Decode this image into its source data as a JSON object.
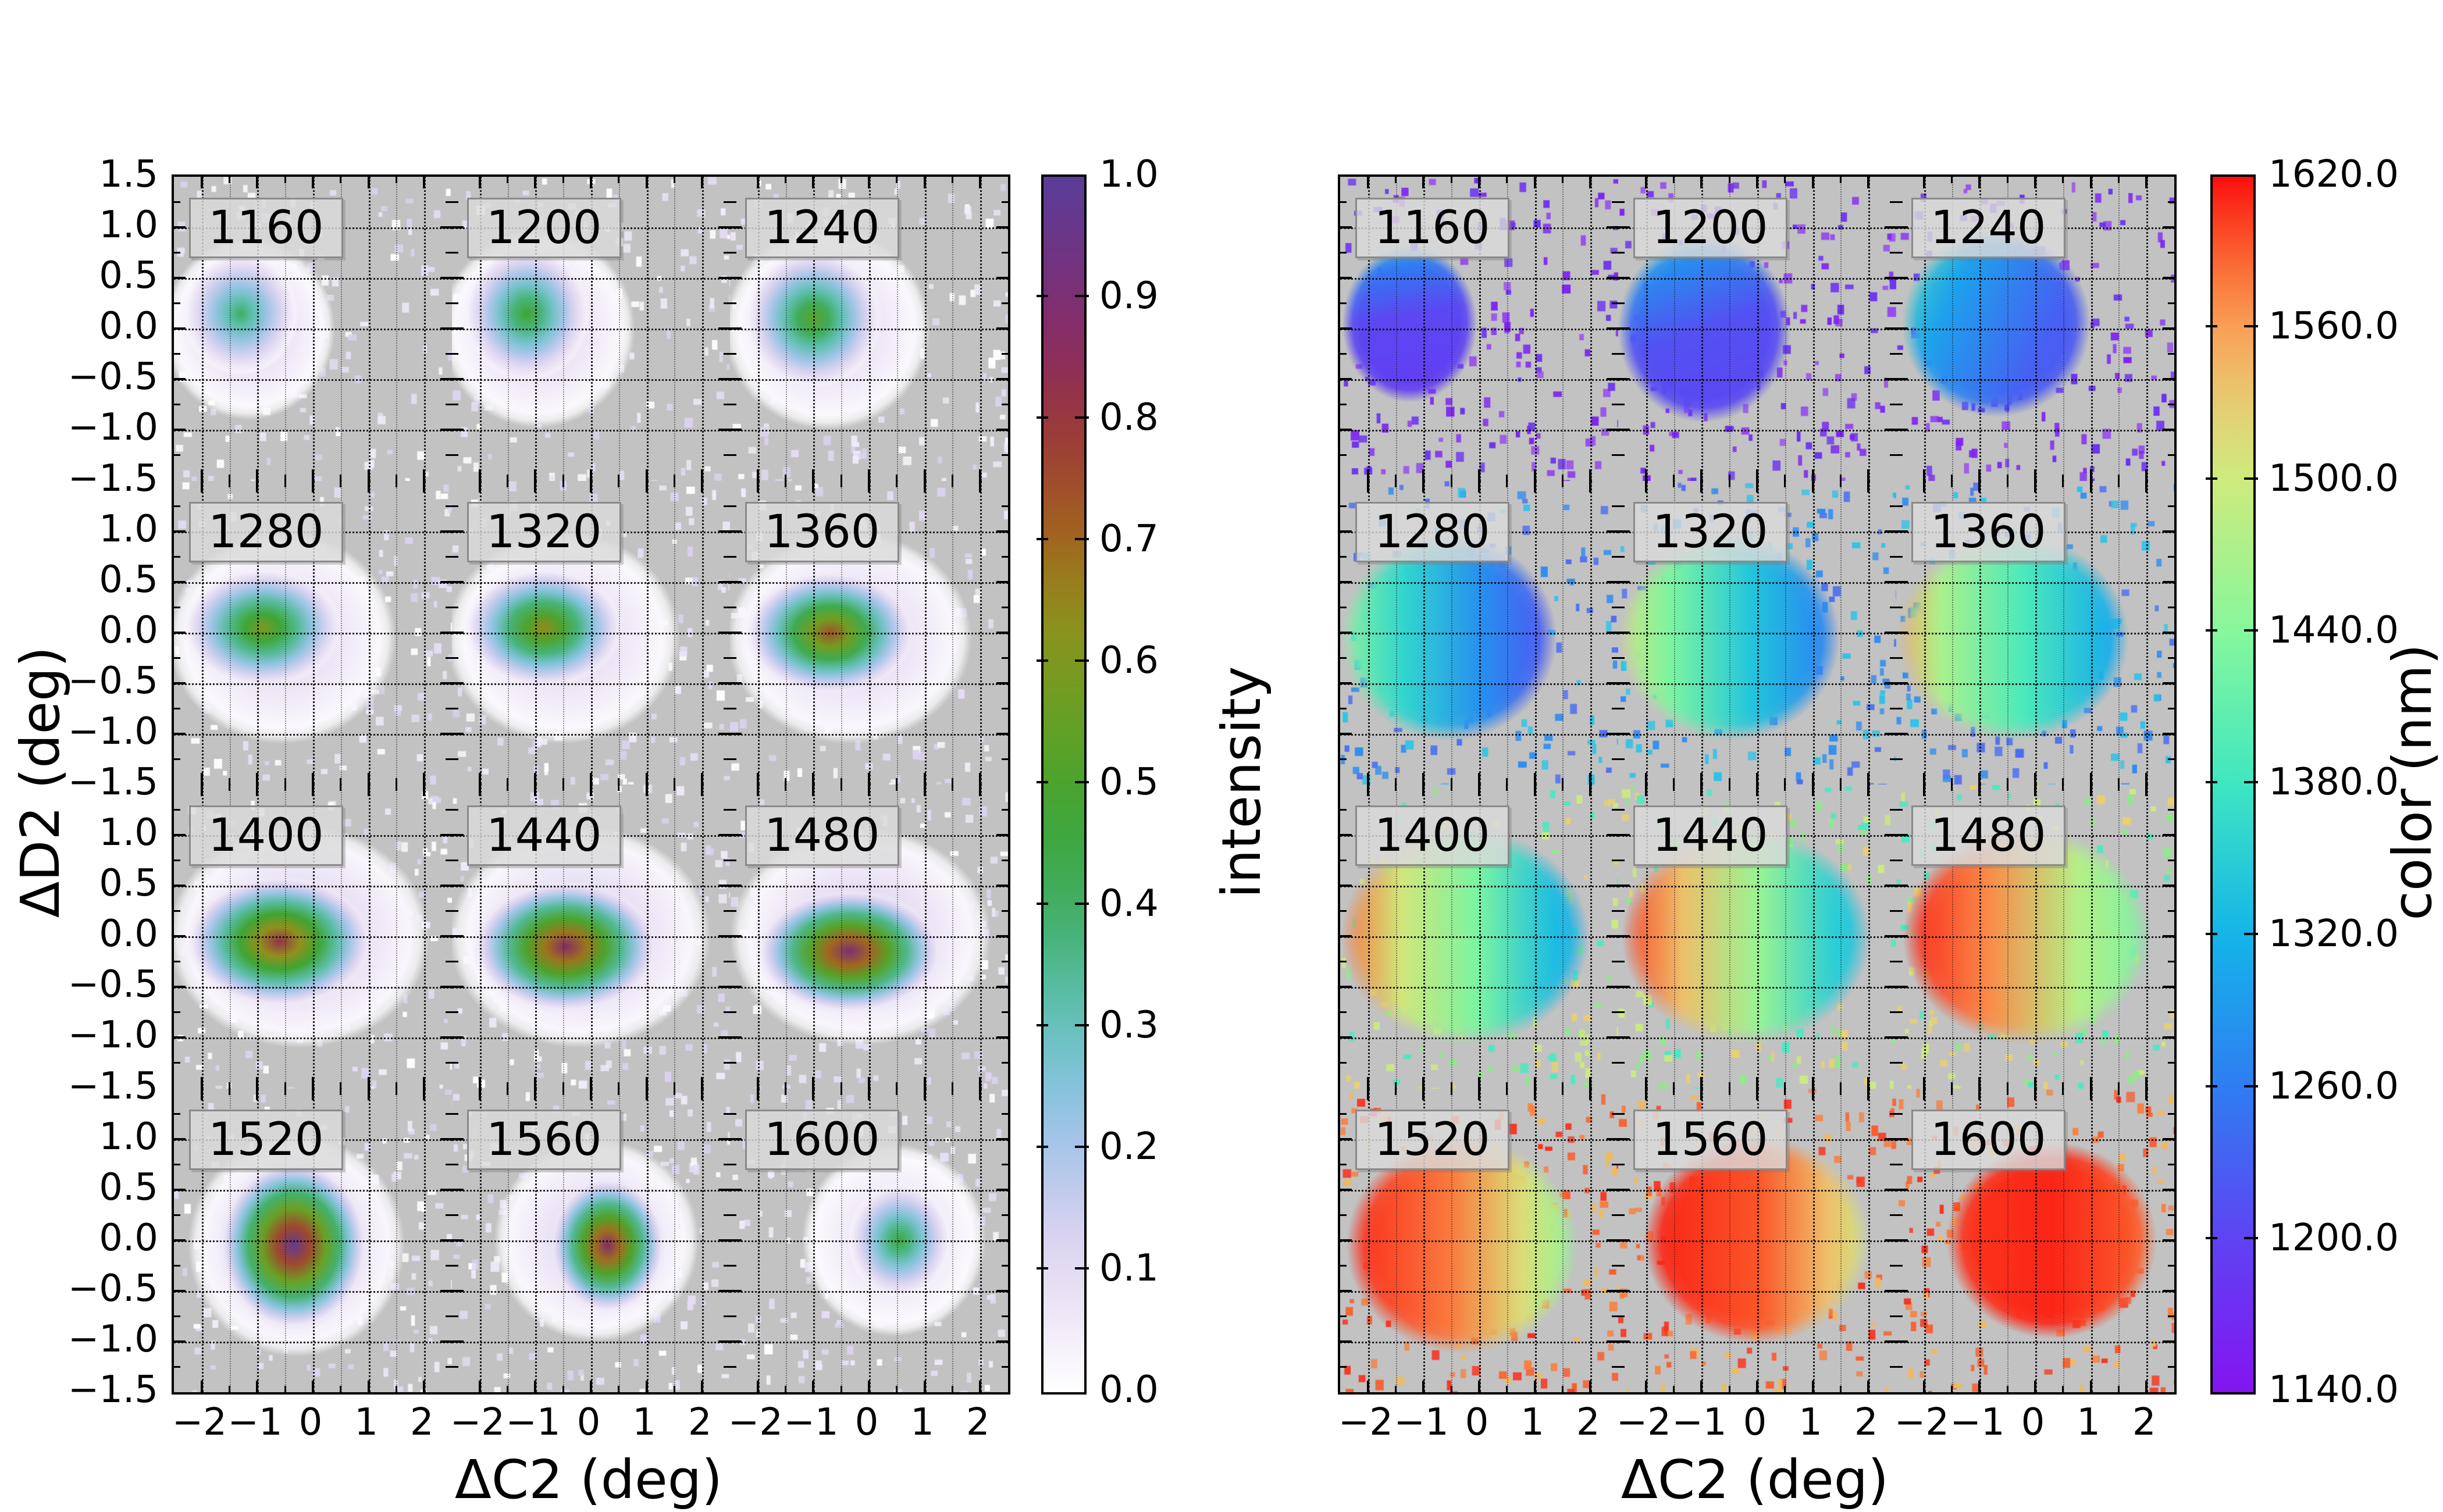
{
  "chart_data": {
    "type": "heatmap",
    "description": "Two 3x4 grids of 2D histogram heatmaps vs (ΔC2, ΔD2); left grid shows normalized intensity, right grid shows mean color in nm; each subplot is one wavelength from 1160 to 1600 nm",
    "x_range": [
      -2.5,
      2.5
    ],
    "y_range": [
      -1.5,
      1.5
    ],
    "x_tick_values": [
      -2,
      -1,
      0,
      1,
      2
    ],
    "y_tick_values": [
      1.5,
      1.0,
      0.5,
      0.0,
      -0.5,
      -1.0,
      -1.5
    ],
    "x_tick_labels": [
      "−2",
      "−1",
      "0",
      "1",
      "2"
    ],
    "y_tick_labels": [
      "1.5",
      "1.0",
      "0.5",
      "0.0",
      "−0.5",
      "−1.0",
      "−1.5"
    ],
    "styles": {
      "plot_bg": "#c2c2c2",
      "figure_bg": "#ffffff",
      "grid_line": "#111111",
      "label_box_bg": "rgba(219,219,219,0.82)",
      "label_box_border": "#8a8a8a"
    },
    "colormaps": {
      "intensity_stops": [
        [
          0.0,
          "#ffffff"
        ],
        [
          0.06,
          "#efe8f7"
        ],
        [
          0.13,
          "#d9d2ef"
        ],
        [
          0.2,
          "#aac4ea"
        ],
        [
          0.26,
          "#7fc3d8"
        ],
        [
          0.32,
          "#5cbfae"
        ],
        [
          0.4,
          "#3fae62"
        ],
        [
          0.48,
          "#3fa432"
        ],
        [
          0.56,
          "#6aa023"
        ],
        [
          0.64,
          "#90901c"
        ],
        [
          0.7,
          "#a1661e"
        ],
        [
          0.78,
          "#9d3c34"
        ],
        [
          0.86,
          "#8a2b60"
        ],
        [
          0.93,
          "#713381"
        ],
        [
          1.0,
          "#5a3d99"
        ]
      ],
      "rainbow_stops": [
        [
          0.0,
          "#8414f0"
        ],
        [
          0.125,
          "#5f43f2"
        ],
        [
          0.25,
          "#2f7cf2"
        ],
        [
          0.375,
          "#14b4e9"
        ],
        [
          0.5,
          "#3fe6c2"
        ],
        [
          0.625,
          "#86f79c"
        ],
        [
          0.75,
          "#cdeb7d"
        ],
        [
          0.815,
          "#e8cd72"
        ],
        [
          0.875,
          "#f9a057"
        ],
        [
          0.94,
          "#fb5e2c"
        ],
        [
          1.0,
          "#fa0f0f"
        ]
      ],
      "rainbow_range_nm": [
        1140,
        1620
      ]
    },
    "noise": {
      "left_palette": [
        "#f1ebf9",
        "#ffffff",
        "#e6ddf3",
        "#dcd2ee"
      ],
      "right_row_palettes": [
        [
          "#7e22f3",
          "#6a30f1",
          "#9647f0"
        ],
        [
          "#2f8df0",
          "#2bc3e9",
          "#4a6ef2"
        ],
        [
          "#8fe98a",
          "#cdeb7d",
          "#4ae9c2",
          "#e8d070"
        ],
        [
          "#f9803f",
          "#fb5a29",
          "#f0b95c",
          "#fa2f1a"
        ]
      ],
      "count_left": 130,
      "count_right": 150
    },
    "panels": [
      {
        "id": "intensity",
        "x_label": "ΔC2 (deg)",
        "y_label": "ΔD2 (deg)",
        "show_y_tick_labels": true,
        "colorbar": {
          "label": "intensity",
          "tick_labels": [
            "1.0",
            "0.9",
            "0.8",
            "0.7",
            "0.6",
            "0.5",
            "0.4",
            "0.3",
            "0.2",
            "0.1",
            "0.0"
          ],
          "tick_values": [
            1.0,
            0.9,
            0.8,
            0.7,
            0.6,
            0.5,
            0.4,
            0.3,
            0.2,
            0.1,
            0.0
          ]
        },
        "subplots": [
          {
            "label": "1160",
            "wavelength_nm": 1160,
            "peak_intensity": 0.4,
            "blobs": [
              [
                -1.15,
                0.0,
                1.55,
                0.9,
                0.13
              ],
              [
                -1.3,
                0.15,
                1.05,
                0.62,
                0.4
              ]
            ]
          },
          {
            "label": "1200",
            "wavelength_nm": 1200,
            "peak_intensity": 0.48,
            "blobs": [
              [
                -0.95,
                0.0,
                1.75,
                0.98,
                0.13
              ],
              [
                -1.15,
                0.15,
                1.15,
                0.68,
                0.48
              ]
            ]
          },
          {
            "label": "1240",
            "wavelength_nm": 1240,
            "peak_intensity": 0.53,
            "blobs": [
              [
                -0.75,
                0.0,
                1.85,
                1.0,
                0.13
              ],
              [
                -1.0,
                0.1,
                1.25,
                0.7,
                0.53
              ]
            ]
          },
          {
            "label": "1280",
            "wavelength_nm": 1280,
            "peak_intensity": 0.6,
            "blobs": [
              [
                -0.55,
                -0.05,
                2.05,
                1.05,
                0.13
              ],
              [
                -0.9,
                0.05,
                1.45,
                0.6,
                0.6
              ]
            ]
          },
          {
            "label": "1320",
            "wavelength_nm": 1320,
            "peak_intensity": 0.65,
            "blobs": [
              [
                -0.5,
                -0.05,
                2.1,
                1.05,
                0.13
              ],
              [
                -0.85,
                0.05,
                1.45,
                0.6,
                0.65
              ]
            ]
          },
          {
            "label": "1360",
            "wavelength_nm": 1360,
            "peak_intensity": 0.74,
            "blobs": [
              [
                -0.35,
                -0.05,
                2.2,
                1.05,
                0.14
              ],
              [
                -0.7,
                0.0,
                1.55,
                0.62,
                0.74
              ]
            ]
          },
          {
            "label": "1400",
            "wavelength_nm": 1400,
            "peak_intensity": 0.82,
            "blobs": [
              [
                -0.25,
                0.0,
                2.35,
                1.1,
                0.16
              ],
              [
                -0.6,
                -0.05,
                1.7,
                0.66,
                0.82
              ]
            ]
          },
          {
            "label": "1440",
            "wavelength_nm": 1440,
            "peak_intensity": 0.87,
            "blobs": [
              [
                -0.2,
                0.0,
                2.35,
                1.1,
                0.16
              ],
              [
                -0.45,
                -0.1,
                1.7,
                0.66,
                0.87
              ]
            ]
          },
          {
            "label": "1480",
            "wavelength_nm": 1480,
            "peak_intensity": 0.9,
            "blobs": [
              [
                -0.15,
                0.0,
                2.35,
                1.08,
                0.16
              ],
              [
                -0.35,
                -0.15,
                1.7,
                0.62,
                0.9
              ]
            ]
          },
          {
            "label": "1520",
            "wavelength_nm": 1520,
            "peak_intensity": 0.97,
            "blobs": [
              [
                -0.3,
                -0.05,
                1.95,
                1.1,
                0.16
              ],
              [
                -0.35,
                -0.05,
                1.35,
                0.85,
                0.97
              ]
            ]
          },
          {
            "label": "1560",
            "wavelength_nm": 1560,
            "peak_intensity": 0.88,
            "blobs": [
              [
                0.1,
                0.0,
                1.85,
                1.0,
                0.14
              ],
              [
                0.3,
                -0.05,
                1.05,
                0.68,
                0.88
              ]
            ]
          },
          {
            "label": "1600",
            "wavelength_nm": 1600,
            "peak_intensity": 0.46,
            "blobs": [
              [
                0.45,
                0.0,
                1.65,
                0.95,
                0.11
              ],
              [
                0.55,
                0.0,
                0.95,
                0.58,
                0.46
              ]
            ]
          }
        ]
      },
      {
        "id": "color",
        "x_label": "ΔC2 (deg)",
        "y_label": "",
        "show_y_tick_labels": false,
        "colorbar": {
          "label": "color (nm)",
          "tick_labels": [
            "1620.0",
            "1560.0",
            "1500.0",
            "1440.0",
            "1380.0",
            "1320.0",
            "1260.0",
            "1200.0",
            "1140.0"
          ],
          "tick_values": [
            1620,
            1560,
            1500,
            1440,
            1380,
            1320,
            1260,
            1200,
            1140
          ]
        },
        "subplots": [
          {
            "label": "1160",
            "wavelength_nm": 1160,
            "ellipse": [
              -1.25,
              0.05,
              1.25,
              0.8
            ],
            "angle": 170,
            "nm_stops": [
              [
                0,
                1330
              ],
              [
                0.18,
                1260
              ],
              [
                0.45,
                1205
              ],
              [
                1,
                1190
              ]
            ]
          },
          {
            "label": "1200",
            "wavelength_nm": 1200,
            "ellipse": [
              -0.95,
              0.0,
              1.6,
              0.95
            ],
            "angle": 160,
            "nm_stops": [
              [
                0,
                1350
              ],
              [
                0.2,
                1280
              ],
              [
                0.5,
                1215
              ],
              [
                1,
                1200
              ]
            ]
          },
          {
            "label": "1240",
            "wavelength_nm": 1240,
            "ellipse": [
              -0.7,
              0.05,
              1.75,
              0.95
            ],
            "angle": 115,
            "nm_stops": [
              [
                0,
                1390
              ],
              [
                0.3,
                1300
              ],
              [
                0.7,
                1230
              ],
              [
                1,
                1215
              ]
            ]
          },
          {
            "label": "1280",
            "wavelength_nm": 1280,
            "ellipse": [
              -0.55,
              -0.05,
              2.0,
              1.05
            ],
            "angle": 90,
            "nm_stops": [
              [
                0,
                1445
              ],
              [
                0.3,
                1360
              ],
              [
                0.65,
                1280
              ],
              [
                0.9,
                1230
              ],
              [
                1,
                1220
              ]
            ]
          },
          {
            "label": "1320",
            "wavelength_nm": 1320,
            "ellipse": [
              -0.5,
              -0.05,
              2.05,
              1.05
            ],
            "angle": 90,
            "nm_stops": [
              [
                0,
                1505
              ],
              [
                0.25,
                1430
              ],
              [
                0.6,
                1340
              ],
              [
                0.9,
                1275
              ],
              [
                1,
                1260
              ]
            ]
          },
          {
            "label": "1360",
            "wavelength_nm": 1360,
            "ellipse": [
              -0.4,
              -0.05,
              2.15,
              1.05
            ],
            "angle": 90,
            "nm_stops": [
              [
                0,
                1555
              ],
              [
                0.2,
                1470
              ],
              [
                0.55,
                1390
              ],
              [
                0.9,
                1315
              ],
              [
                1,
                1300
              ]
            ]
          },
          {
            "label": "1400",
            "wavelength_nm": 1400,
            "ellipse": [
              -0.25,
              0.0,
              2.3,
              1.1
            ],
            "angle": 90,
            "nm_stops": [
              [
                0,
                1585
              ],
              [
                0.25,
                1505
              ],
              [
                0.55,
                1430
              ],
              [
                0.85,
                1330
              ],
              [
                1,
                1305
              ]
            ]
          },
          {
            "label": "1440",
            "wavelength_nm": 1440,
            "ellipse": [
              -0.2,
              0.0,
              2.3,
              1.1
            ],
            "angle": 90,
            "nm_stops": [
              [
                0,
                1605
              ],
              [
                0.25,
                1540
              ],
              [
                0.55,
                1455
              ],
              [
                0.85,
                1350
              ],
              [
                1,
                1330
              ]
            ]
          },
          {
            "label": "1480",
            "wavelength_nm": 1480,
            "ellipse": [
              -0.15,
              0.0,
              2.3,
              1.1
            ],
            "angle": 90,
            "nm_stops": [
              [
                0,
                1615
              ],
              [
                0.35,
                1570
              ],
              [
                0.7,
                1480
              ],
              [
                1,
                1425
              ]
            ]
          },
          {
            "label": "1520",
            "wavelength_nm": 1520,
            "ellipse": [
              -0.3,
              -0.05,
              2.15,
              1.1
            ],
            "angle": 90,
            "nm_stops": [
              [
                0,
                1612
              ],
              [
                0.45,
                1578
              ],
              [
                0.75,
                1515
              ],
              [
                0.92,
                1465
              ],
              [
                1,
                1440
              ]
            ]
          },
          {
            "label": "1560",
            "wavelength_nm": 1560,
            "ellipse": [
              0.0,
              0.0,
              2.1,
              1.05
            ],
            "angle": 90,
            "nm_stops": [
              [
                0,
                1615
              ],
              [
                0.5,
                1595
              ],
              [
                0.8,
                1540
              ],
              [
                1,
                1500
              ]
            ]
          },
          {
            "label": "1600",
            "wavelength_nm": 1600,
            "ellipse": [
              0.3,
              0.0,
              1.95,
              1.0
            ],
            "angle": 90,
            "nm_stops": [
              [
                0,
                1605
              ],
              [
                0.5,
                1612
              ],
              [
                0.85,
                1595
              ],
              [
                1,
                1580
              ]
            ]
          }
        ]
      }
    ]
  }
}
